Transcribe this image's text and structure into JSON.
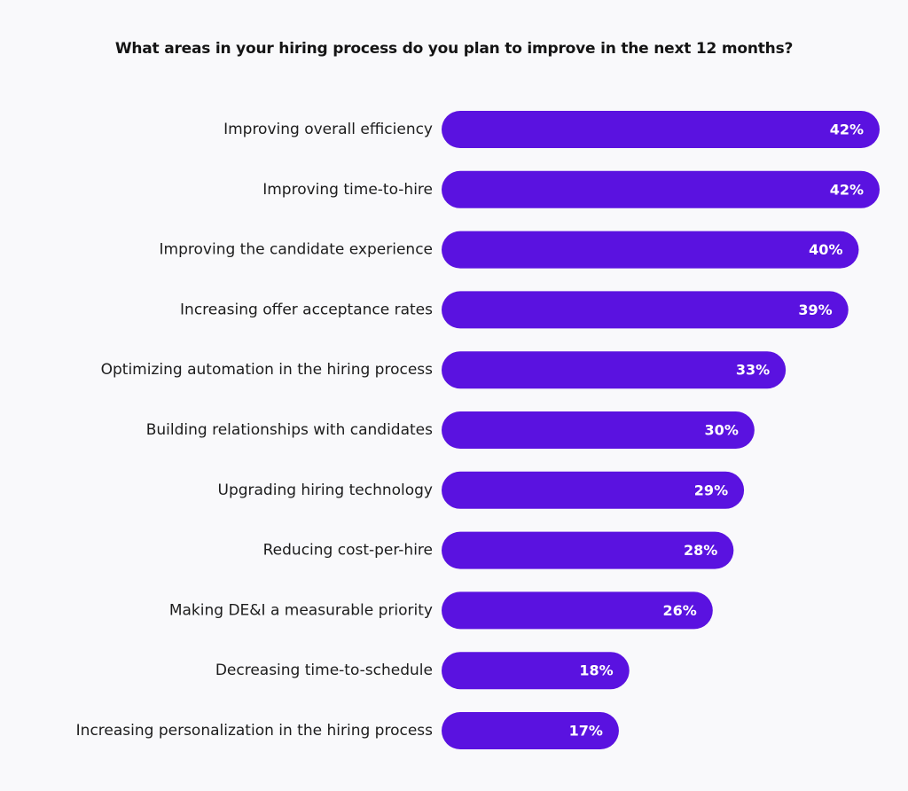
{
  "chart_data": {
    "type": "bar",
    "orientation": "horizontal",
    "title": "What areas in your hiring process do you plan to improve in the next 12 months?",
    "categories": [
      "Improving overall efficiency",
      "Improving time-to-hire",
      "Improving the candidate experience",
      "Increasing offer acceptance rates",
      "Optimizing automation in the hiring process",
      "Building relationships with candidates",
      "Upgrading hiring technology",
      "Reducing cost-per-hire",
      "Making DE&I a measurable priority",
      "Decreasing time-to-schedule",
      "Increasing personalization in the hiring process"
    ],
    "values": [
      42,
      42,
      40,
      39,
      33,
      30,
      29,
      28,
      26,
      18,
      17
    ],
    "value_labels": [
      "42%",
      "42%",
      "40%",
      "39%",
      "33%",
      "30%",
      "29%",
      "28%",
      "26%",
      "18%",
      "17%"
    ],
    "xlabel": "",
    "ylabel": "",
    "xlim": [
      0,
      42
    ],
    "grid": false,
    "legend": "none",
    "bar_color": "#5a12e0",
    "label_color": "#1c1c1c",
    "value_label_color": "#ffffff"
  }
}
